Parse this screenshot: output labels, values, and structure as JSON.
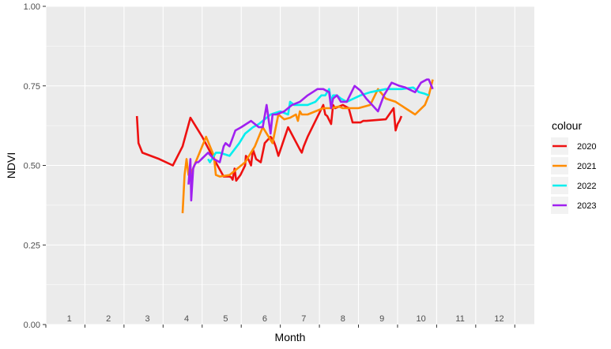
{
  "chart_data": {
    "type": "line",
    "xlabel": "Month",
    "ylabel": "NDVI",
    "ylim": [
      0,
      1
    ],
    "xlim": [
      0.5,
      13
    ],
    "grid": true,
    "legend_title": "colour",
    "legend_position": "right",
    "x_tick_labels": [
      "1",
      "2",
      "3",
      "4",
      "5",
      "6",
      "7",
      "8",
      "9",
      "10",
      "11",
      "12"
    ],
    "y_tick_labels": [
      "0.00",
      "0.25",
      "0.50",
      "0.75",
      "1.00"
    ],
    "y_ticks": [
      0,
      0.25,
      0.5,
      0.75,
      1.0
    ],
    "series": [
      {
        "name": "2020",
        "color": "#ee1111",
        "x": [
          2.83,
          2.87,
          2.97,
          3.4,
          3.75,
          4.0,
          4.2,
          4.5,
          4.8,
          5.05,
          5.2,
          5.25,
          5.28,
          5.33,
          5.37,
          5.48,
          5.52,
          5.6,
          5.62,
          5.68,
          5.75,
          5.8,
          5.88,
          6.0,
          6.1,
          6.25,
          6.32,
          6.38,
          6.45,
          6.7,
          7.0,
          7.05,
          7.1,
          7.2,
          7.6,
          7.65,
          7.7,
          7.8,
          7.85,
          7.9,
          8.1,
          8.25,
          8.35,
          8.55,
          8.62,
          8.7,
          9.2,
          9.4,
          9.45,
          9.5,
          9.55,
          9.6
        ],
        "y": [
          0.655,
          0.57,
          0.54,
          0.52,
          0.5,
          0.56,
          0.65,
          0.59,
          0.52,
          0.465,
          0.465,
          0.462,
          0.455,
          0.49,
          0.452,
          0.47,
          0.48,
          0.5,
          0.53,
          0.52,
          0.5,
          0.55,
          0.52,
          0.51,
          0.57,
          0.59,
          0.58,
          0.56,
          0.53,
          0.62,
          0.55,
          0.54,
          0.56,
          0.59,
          0.69,
          0.66,
          0.655,
          0.63,
          0.69,
          0.68,
          0.69,
          0.68,
          0.635,
          0.635,
          0.64,
          0.64,
          0.645,
          0.68,
          0.61,
          0.63,
          0.64,
          0.655
        ]
      },
      {
        "name": "2021",
        "color": "#ff8c00",
        "x": [
          4.0,
          4.05,
          4.1,
          4.15,
          4.2,
          4.6,
          4.8,
          4.85,
          4.95,
          5.2,
          5.6,
          5.85,
          6.05,
          6.3,
          6.45,
          6.6,
          6.75,
          6.9,
          6.95,
          7.0,
          7.05,
          7.2,
          7.6,
          7.8,
          8.0,
          8.1,
          8.5,
          8.8,
          9.0,
          9.2,
          9.45,
          9.7,
          9.95,
          10.2,
          10.3,
          10.4
        ],
        "y": [
          0.35,
          0.47,
          0.52,
          0.47,
          0.47,
          0.59,
          0.53,
          0.47,
          0.465,
          0.47,
          0.51,
          0.56,
          0.62,
          0.57,
          0.66,
          0.645,
          0.65,
          0.66,
          0.64,
          0.67,
          0.66,
          0.66,
          0.68,
          0.68,
          0.685,
          0.68,
          0.68,
          0.69,
          0.74,
          0.71,
          0.7,
          0.68,
          0.66,
          0.69,
          0.72,
          0.77
        ]
      },
      {
        "name": "2022",
        "color": "#00eeee",
        "x": [
          4.65,
          4.7,
          4.85,
          4.95,
          5.2,
          5.45,
          5.6,
          5.8,
          5.95,
          6.05,
          6.15,
          6.25,
          6.5,
          6.7,
          6.75,
          6.85,
          7.0,
          7.2,
          7.4,
          7.55,
          7.65,
          7.75,
          7.8,
          7.85,
          7.95,
          8.05,
          8.2,
          8.55,
          8.8,
          9.0,
          9.2,
          9.6,
          9.9,
          10.05,
          10.2,
          10.3
        ],
        "y": [
          0.52,
          0.51,
          0.54,
          0.54,
          0.53,
          0.57,
          0.6,
          0.62,
          0.63,
          0.64,
          0.65,
          0.66,
          0.67,
          0.66,
          0.7,
          0.69,
          0.69,
          0.69,
          0.7,
          0.72,
          0.72,
          0.74,
          0.7,
          0.72,
          0.72,
          0.71,
          0.7,
          0.72,
          0.73,
          0.735,
          0.74,
          0.74,
          0.745,
          0.73,
          0.725,
          0.72
        ]
      },
      {
        "name": "2023",
        "color": "#a020f0",
        "x": [
          4.15,
          4.2,
          4.22,
          4.27,
          4.3,
          4.35,
          4.4,
          4.65,
          4.8,
          4.95,
          5.05,
          5.1,
          5.2,
          5.35,
          5.5,
          5.75,
          5.95,
          6.05,
          6.15,
          6.25,
          6.3,
          6.4,
          6.6,
          6.8,
          7.0,
          7.2,
          7.45,
          7.6,
          7.75,
          7.8,
          7.85,
          7.95,
          8.05,
          8.2,
          8.4,
          8.55,
          8.7,
          8.85,
          9.0,
          9.15,
          9.35,
          9.55,
          9.7,
          9.95,
          10.1,
          10.25,
          10.3,
          10.4
        ],
        "y": [
          0.44,
          0.52,
          0.39,
          0.49,
          0.5,
          0.51,
          0.51,
          0.54,
          0.52,
          0.51,
          0.56,
          0.57,
          0.56,
          0.61,
          0.62,
          0.64,
          0.62,
          0.62,
          0.69,
          0.6,
          0.66,
          0.66,
          0.67,
          0.69,
          0.7,
          0.72,
          0.74,
          0.74,
          0.73,
          0.68,
          0.71,
          0.72,
          0.7,
          0.7,
          0.75,
          0.735,
          0.71,
          0.69,
          0.67,
          0.72,
          0.76,
          0.75,
          0.745,
          0.73,
          0.76,
          0.77,
          0.77,
          0.74
        ]
      }
    ]
  }
}
